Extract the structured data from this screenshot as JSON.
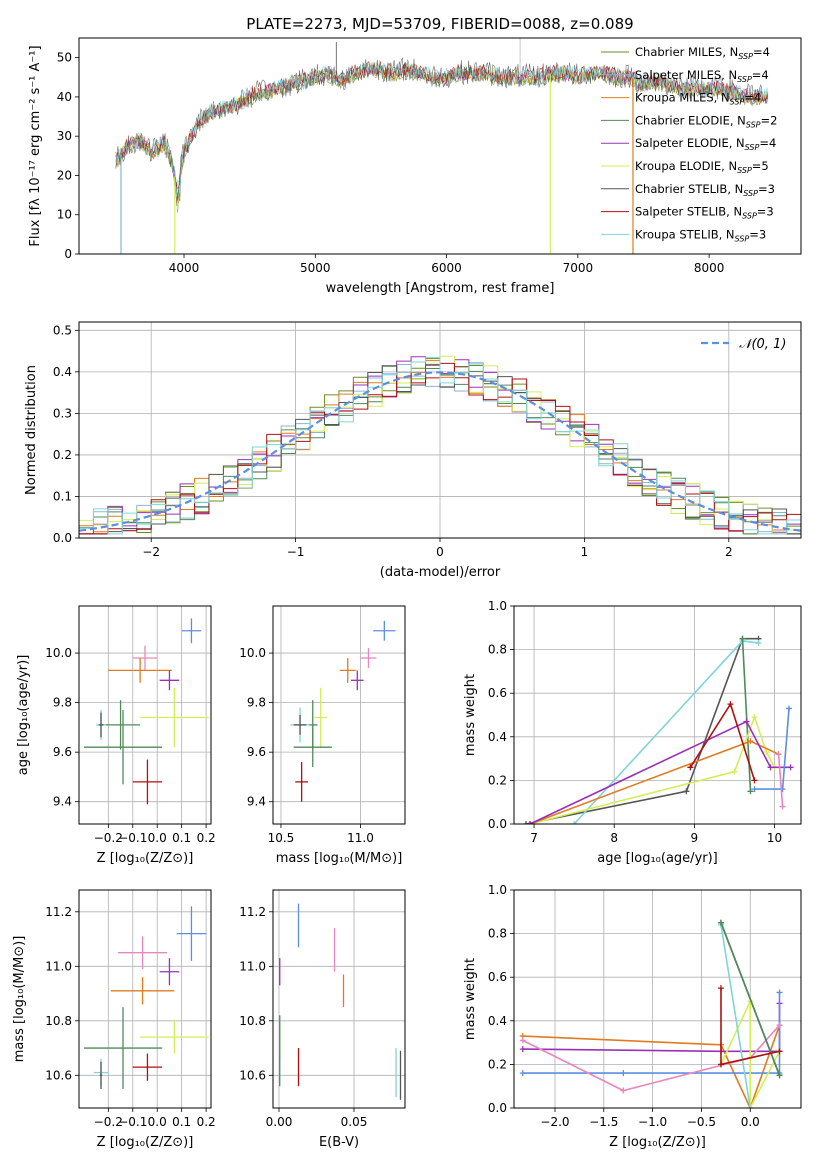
{
  "page": {
    "title": "PLATE=2273, MJD=53709, FIBERID=0088, z=0.089"
  },
  "colors": {
    "Chabrier MILES": "#6b8e23",
    "Salpeter MILES": "#8ab4d6",
    "Kroupa MILES": "#e07b20",
    "Chabrier ELODIE": "#4f8a5a",
    "Salpeter ELODIE": "#9b30b8",
    "Kroupa ELODIE": "#d4ee58",
    "Chabrier STELIB": "#555555",
    "Salpeter STELIB": "#b01010",
    "Kroupa STELIB": "#7fd6d8",
    "normal_curve": "#5b8fe0",
    "pink": "#e887bf",
    "blue": "#5b8fe0"
  },
  "chart_data": [
    {
      "id": "spectrum",
      "type": "line",
      "xlabel": "wavelength [Angstrom, rest frame]",
      "ylabel": "Flux [fλ 10⁻¹⁷ erg cm⁻² s⁻¹ A⁻¹]",
      "xlim": [
        3200,
        8700
      ],
      "ylim": [
        0,
        55
      ],
      "xticks": [
        4000,
        5000,
        6000,
        7000,
        8000
      ],
      "yticks": [
        0,
        10,
        20,
        30,
        40,
        50
      ],
      "grid": false,
      "legend_position": "top-right",
      "legend": [
        {
          "label": "Chabrier MILES, N",
          "sub": "SSP",
          "suffix": "=4"
        },
        {
          "label": "Salpeter MILES, N",
          "sub": "SSP",
          "suffix": "=4"
        },
        {
          "label": "Kroupa MILES, N",
          "sub": "SSP",
          "suffix": "=4"
        },
        {
          "label": "Chabrier ELODIE, N",
          "sub": "SSP",
          "suffix": "=2"
        },
        {
          "label": "Salpeter ELODIE, N",
          "sub": "SSP",
          "suffix": "=4"
        },
        {
          "label": "Kroupa ELODIE, N",
          "sub": "SSP",
          "suffix": "=5"
        },
        {
          "label": "Chabrier STELIB, N",
          "sub": "SSP",
          "suffix": "=3"
        },
        {
          "label": "Salpeter STELIB, N",
          "sub": "SSP",
          "suffix": "=3"
        },
        {
          "label": "Kroupa STELIB, N",
          "sub": "SSP",
          "suffix": "=3"
        }
      ],
      "series_x": [
        3500,
        3550,
        3600,
        3650,
        3700,
        3750,
        3800,
        3850,
        3900,
        3950,
        4000,
        4100,
        4200,
        4300,
        4400,
        4500,
        4600,
        4700,
        4800,
        4900,
        5000,
        5100,
        5200,
        5300,
        5400,
        5500,
        5600,
        5700,
        5800,
        5900,
        6000,
        6100,
        6200,
        6300,
        6400,
        6500,
        6600,
        6700,
        6800,
        6900,
        7000,
        7100,
        7200,
        7300,
        7400,
        7500,
        7600,
        7700,
        7800,
        7900,
        8000,
        8100,
        8200,
        8300,
        8400
      ],
      "series_y": [
        24,
        27,
        28,
        29,
        28,
        26,
        27,
        28,
        24,
        17,
        26,
        33,
        36,
        37,
        38,
        40,
        41,
        42,
        43,
        44,
        45,
        46,
        44,
        46,
        47,
        47,
        46,
        47,
        46,
        45,
        45,
        46,
        46,
        46,
        45,
        45,
        45,
        45,
        46,
        46,
        45,
        46,
        46,
        45,
        45,
        43,
        44,
        43,
        42,
        42,
        42,
        42,
        41,
        40,
        40
      ],
      "features": [
        {
          "series": "Salpeter MILES",
          "x": 3520,
          "drop_to": 0,
          "note": "edge"
        },
        {
          "series": "Kroupa ELODIE",
          "x": 3930,
          "drop_to": 0
        },
        {
          "series": "Kroupa ELODIE",
          "x": 6790,
          "drop_to": 0
        },
        {
          "series": "Kroupa MILES",
          "x": 7420,
          "drop_to": 0
        }
      ]
    },
    {
      "id": "residuals",
      "type": "line",
      "xlabel": "(data-model)/error",
      "ylabel": "Normed distribution",
      "xlim": [
        -2.5,
        2.5
      ],
      "ylim": [
        0,
        0.52
      ],
      "xticks": [
        -2,
        -1,
        0,
        1,
        2
      ],
      "yticks": [
        0.0,
        0.1,
        0.2,
        0.3,
        0.4,
        0.5
      ],
      "grid": true,
      "legend_position": "top-right",
      "legend": [
        {
          "label": "𝒩(0, 1)"
        }
      ],
      "bin_width": 0.1,
      "gaussian": {
        "mu": 0,
        "sigma": 1
      }
    },
    {
      "id": "age_vs_Z",
      "type": "scatter",
      "xlabel": "Z [log₁₀(Z/Z⊙)]",
      "ylabel": "age  [log₁₀(age/yr)]",
      "xlim": [
        -0.32,
        0.22
      ],
      "ylim": [
        9.31,
        10.19
      ],
      "xticks": [
        -0.2,
        -0.1,
        0.0,
        0.1,
        0.2
      ],
      "yticks": [
        9.4,
        9.6,
        9.8,
        10.0
      ],
      "grid": true,
      "points": [
        {
          "color": "#5b8fe0",
          "x": 0.14,
          "y": 10.09,
          "xerr": 0.04,
          "yerr": 0.05
        },
        {
          "color": "#e887bf",
          "x": -0.05,
          "y": 9.98,
          "xerr": 0.05,
          "yerr": 0.05
        },
        {
          "color": "#e07b20",
          "x": -0.07,
          "y": 9.93,
          "xerr": 0.13,
          "yerr": 0.05
        },
        {
          "color": "#9b30b8",
          "x": 0.05,
          "y": 9.89,
          "xerr": 0.04,
          "yerr": 0.04
        },
        {
          "color": "#4f8a5a",
          "x": -0.15,
          "y": 9.71,
          "xerr": 0.08,
          "yerr": 0.1
        },
        {
          "color": "#d4ee58",
          "x": 0.07,
          "y": 9.74,
          "xerr": 0.14,
          "yerr": 0.12
        },
        {
          "color": "#7fd6d8",
          "x": -0.23,
          "y": 9.71,
          "xerr": 0.02,
          "yerr": 0.06
        },
        {
          "color": "#555555",
          "x": -0.23,
          "y": 9.71,
          "xerr": 0.01,
          "yerr": 0.05
        },
        {
          "color": "#4f8a5a",
          "x": -0.14,
          "y": 9.62,
          "xerr": 0.16,
          "yerr": 0.15
        },
        {
          "color": "#b01010",
          "x": -0.04,
          "y": 9.48,
          "xerr": 0.06,
          "yerr": 0.09
        }
      ]
    },
    {
      "id": "age_vs_mass",
      "type": "scatter",
      "xlabel": "mass [log₁₀(M/M⊙)]",
      "ylabel": "",
      "xlim": [
        10.45,
        11.28
      ],
      "ylim": [
        9.31,
        10.19
      ],
      "xticks": [
        10.5,
        11.0
      ],
      "yticks": [
        9.4,
        9.6,
        9.8,
        10.0
      ],
      "grid": true,
      "points": [
        {
          "color": "#5b8fe0",
          "x": 11.15,
          "y": 10.09,
          "xerr": 0.07,
          "yerr": 0.04
        },
        {
          "color": "#e887bf",
          "x": 11.05,
          "y": 9.98,
          "xerr": 0.05,
          "yerr": 0.04
        },
        {
          "color": "#e07b20",
          "x": 10.92,
          "y": 9.93,
          "xerr": 0.05,
          "yerr": 0.05
        },
        {
          "color": "#9b30b8",
          "x": 10.98,
          "y": 9.89,
          "xerr": 0.04,
          "yerr": 0.04
        },
        {
          "color": "#d4ee58",
          "x": 10.75,
          "y": 9.74,
          "xerr": 0.04,
          "yerr": 0.12
        },
        {
          "color": "#4f8a5a",
          "x": 10.7,
          "y": 9.71,
          "xerr": 0.03,
          "yerr": 0.1
        },
        {
          "color": "#7fd6d8",
          "x": 10.62,
          "y": 9.71,
          "xerr": 0.06,
          "yerr": 0.07
        },
        {
          "color": "#555555",
          "x": 10.62,
          "y": 9.71,
          "xerr": 0.04,
          "yerr": 0.04
        },
        {
          "color": "#4f8a5a",
          "x": 10.7,
          "y": 9.62,
          "xerr": 0.12,
          "yerr": 0.08
        },
        {
          "color": "#b01010",
          "x": 10.63,
          "y": 9.48,
          "xerr": 0.04,
          "yerr": 0.08
        }
      ]
    },
    {
      "id": "mass_weight_vs_age",
      "type": "line",
      "xlabel": "age  [log₁₀(age/yr)]",
      "ylabel": "mass weight",
      "xlim": [
        6.75,
        10.33
      ],
      "ylim": [
        0.0,
        1.0
      ],
      "xticks": [
        7,
        8,
        9,
        10
      ],
      "yticks": [
        0.0,
        0.2,
        0.4,
        0.6,
        0.8,
        1.0
      ],
      "grid": true,
      "series": [
        {
          "color": "#555555",
          "x": [
            6.9,
            8.9,
            9.6,
            9.8
          ],
          "y": [
            0.0,
            0.15,
            0.85,
            0.85
          ]
        },
        {
          "color": "#7fd6d8",
          "x": [
            7.5,
            9.6,
            9.8
          ],
          "y": [
            0.0,
            0.84,
            0.83
          ]
        },
        {
          "color": "#4f8a5a",
          "x": [
            9.6,
            9.7
          ],
          "y": [
            0.85,
            0.15
          ]
        },
        {
          "color": "#d4ee58",
          "x": [
            6.95,
            9.5,
            9.75,
            9.9,
            10.0
          ],
          "y": [
            0.0,
            0.24,
            0.49,
            0.33,
            0.26
          ]
        },
        {
          "color": "#e07b20",
          "x": [
            6.95,
            9.7,
            10.05
          ],
          "y": [
            0.0,
            0.38,
            0.32
          ]
        },
        {
          "color": "#9b30b8",
          "x": [
            6.95,
            9.65,
            9.95,
            10.2
          ],
          "y": [
            0.0,
            0.47,
            0.26,
            0.26
          ]
        },
        {
          "color": "#b01010",
          "x": [
            8.95,
            9.45,
            9.75
          ],
          "y": [
            0.26,
            0.55,
            0.2
          ]
        },
        {
          "color": "#5b8fe0",
          "x": [
            9.75,
            10.1,
            10.18
          ],
          "y": [
            0.16,
            0.16,
            0.53
          ]
        },
        {
          "color": "#e887bf",
          "x": [
            10.05,
            10.1
          ],
          "y": [
            0.32,
            0.08
          ]
        }
      ]
    },
    {
      "id": "mass_vs_Z",
      "type": "scatter",
      "xlabel": "Z [log₁₀(Z/Z⊙)]",
      "ylabel": "mass [log₁₀(M/M⊙)]",
      "xlim": [
        -0.32,
        0.22
      ],
      "ylim": [
        10.48,
        11.28
      ],
      "xticks": [
        -0.2,
        -0.1,
        0.0,
        0.1,
        0.2
      ],
      "yticks": [
        10.6,
        10.8,
        11.0,
        11.2
      ],
      "grid": true,
      "points": [
        {
          "color": "#5b8fe0",
          "x": 0.14,
          "y": 11.12,
          "xerr": 0.06,
          "yerr": 0.1
        },
        {
          "color": "#e887bf",
          "x": -0.06,
          "y": 11.05,
          "xerr": 0.1,
          "yerr": 0.06
        },
        {
          "color": "#9b30b8",
          "x": 0.05,
          "y": 10.98,
          "xerr": 0.04,
          "yerr": 0.05
        },
        {
          "color": "#e07b20",
          "x": -0.06,
          "y": 10.91,
          "xerr": 0.13,
          "yerr": 0.05
        },
        {
          "color": "#d4ee58",
          "x": 0.07,
          "y": 10.74,
          "xerr": 0.14,
          "yerr": 0.06
        },
        {
          "color": "#4f8a5a",
          "x": -0.14,
          "y": 10.7,
          "xerr": 0.16,
          "yerr": 0.15
        },
        {
          "color": "#b01010",
          "x": -0.04,
          "y": 10.63,
          "xerr": 0.06,
          "yerr": 0.05
        },
        {
          "color": "#7fd6d8",
          "x": -0.23,
          "y": 10.61,
          "xerr": 0.03,
          "yerr": 0.05
        },
        {
          "color": "#555555",
          "x": -0.23,
          "y": 10.6,
          "xerr": 0.005,
          "yerr": 0.05
        }
      ]
    },
    {
      "id": "mass_vs_ebv",
      "type": "scatter",
      "xlabel": "E(B-V)",
      "ylabel": "",
      "xlim": [
        -0.004,
        0.084
      ],
      "ylim": [
        10.48,
        11.28
      ],
      "xticks": [
        0.0,
        0.05
      ],
      "yticks": [
        10.6,
        10.8,
        11.0,
        11.2
      ],
      "grid": true,
      "points": [
        {
          "color": "#5b8fe0",
          "x": 0.013,
          "y": 11.15,
          "xerr": 0,
          "yerr": 0.08
        },
        {
          "color": "#e887bf",
          "x": 0.037,
          "y": 11.06,
          "xerr": 0,
          "yerr": 0.08
        },
        {
          "color": "#9b30b8",
          "x": 0.0005,
          "y": 10.98,
          "xerr": 0,
          "yerr": 0.05
        },
        {
          "color": "#e07b20",
          "x": 0.043,
          "y": 10.91,
          "xerr": 0,
          "yerr": 0.06
        },
        {
          "color": "#d4ee58",
          "x": 0.0005,
          "y": 10.74,
          "xerr": 0,
          "yerr": 0.08
        },
        {
          "color": "#4f8a5a",
          "x": 0.0005,
          "y": 10.69,
          "xerr": 0,
          "yerr": 0.13
        },
        {
          "color": "#b01010",
          "x": 0.013,
          "y": 10.63,
          "xerr": 0,
          "yerr": 0.07
        },
        {
          "color": "#7fd6d8",
          "x": 0.078,
          "y": 10.61,
          "xerr": 0,
          "yerr": 0.09
        },
        {
          "color": "#555555",
          "x": 0.081,
          "y": 10.6,
          "xerr": 0,
          "yerr": 0.09
        }
      ]
    },
    {
      "id": "mass_weight_vs_Z",
      "type": "line",
      "xlabel": "Z [log₁₀(Z/Z⊙)]",
      "ylabel": "mass weight",
      "xlim": [
        -2.42,
        0.52
      ],
      "ylim": [
        0.0,
        1.0
      ],
      "xticks": [
        -2.0,
        -1.5,
        -1.0,
        -0.5,
        0.0
      ],
      "yticks": [
        0.0,
        0.2,
        0.4,
        0.6,
        0.8,
        1.0
      ],
      "grid": true,
      "series": [
        {
          "color": "#e07b20",
          "x": [
            -2.33,
            -0.3,
            0.0,
            0.3
          ],
          "y": [
            0.33,
            0.29,
            0.0,
            0.38
          ]
        },
        {
          "color": "#9b30b8",
          "x": [
            -2.33,
            -0.3,
            0.3,
            0.3
          ],
          "y": [
            0.27,
            0.26,
            0.26,
            0.48
          ]
        },
        {
          "color": "#5b8fe0",
          "x": [
            -2.33,
            -1.3,
            0.3,
            0.3
          ],
          "y": [
            0.16,
            0.16,
            0.16,
            0.53
          ]
        },
        {
          "color": "#e887bf",
          "x": [
            -2.33,
            -1.3,
            0.0,
            0.3
          ],
          "y": [
            0.31,
            0.08,
            0.23,
            0.38
          ]
        },
        {
          "color": "#d4ee58",
          "x": [
            -0.3,
            0.0,
            0.0,
            0.3
          ],
          "y": [
            0.2,
            0.49,
            0.0,
            0.26
          ]
        },
        {
          "color": "#555555",
          "x": [
            -0.3,
            0.3
          ],
          "y": [
            0.85,
            0.15
          ]
        },
        {
          "color": "#7fd6d8",
          "x": [
            -0.3,
            0.0
          ],
          "y": [
            0.84,
            0.0
          ]
        },
        {
          "color": "#4f8a5a",
          "x": [
            -0.3,
            0.3
          ],
          "y": [
            0.85,
            0.15
          ]
        },
        {
          "color": "#b01010",
          "x": [
            -0.3,
            -0.3,
            0.3
          ],
          "y": [
            0.55,
            0.2,
            0.26
          ]
        }
      ]
    }
  ]
}
